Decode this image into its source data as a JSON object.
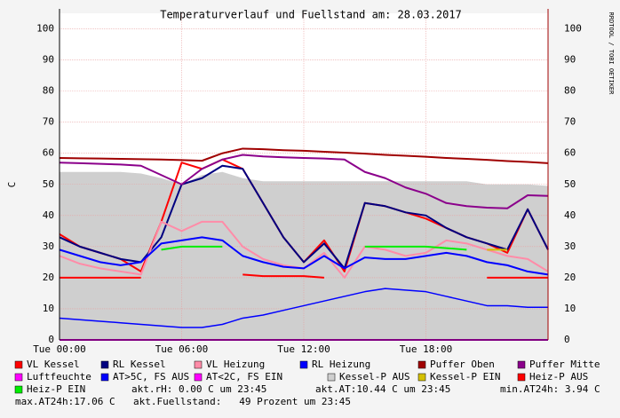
{
  "chart_data": {
    "type": "line",
    "title": "Temperaturverlauf und Fuellstand am: 28.03.2017",
    "y_label": "C",
    "watermark": "RRDTOOL / TOBI OETIKER",
    "x": [
      0,
      1,
      2,
      3,
      4,
      5,
      6,
      7,
      8,
      9,
      10,
      11,
      12,
      13,
      14,
      15,
      16,
      17,
      18,
      19,
      20,
      21,
      22,
      23,
      24
    ],
    "xlim": [
      0,
      24
    ],
    "xticks": [
      {
        "value": 0,
        "label": "Tue 00:00"
      },
      {
        "value": 6,
        "label": "Tue 06:00"
      },
      {
        "value": 12,
        "label": "Tue 12:00"
      },
      {
        "value": 18,
        "label": "Tue 18:00"
      }
    ],
    "ylim": [
      0,
      105
    ],
    "yticks": [
      0,
      10,
      20,
      30,
      40,
      50,
      60,
      70,
      80,
      90,
      100
    ],
    "grid": true,
    "series": [
      {
        "name": "Kessel-P AUS",
        "color": "#cfcfcf",
        "style": "area",
        "values": [
          54,
          54,
          54,
          54,
          53.5,
          52,
          50,
          53,
          54,
          52,
          51,
          51,
          51,
          51,
          51,
          51,
          51,
          51,
          51,
          51,
          51,
          50,
          50,
          50,
          49.5
        ]
      },
      {
        "name": "VL Kessel",
        "color": "#ff0000",
        "values": [
          34,
          30,
          28,
          26,
          22,
          38,
          57,
          55,
          58,
          55,
          44,
          33,
          25,
          32,
          22,
          44,
          43,
          41,
          39,
          36,
          33,
          31,
          28,
          42,
          29
        ]
      },
      {
        "name": "RL Kessel",
        "color": "#000080",
        "values": [
          33,
          30,
          28,
          26,
          25,
          33,
          50,
          52,
          56,
          55,
          44,
          33,
          25,
          31,
          23,
          44,
          43,
          41,
          40,
          36,
          33,
          31,
          29,
          42,
          29
        ]
      },
      {
        "name": "VL Heizung",
        "color": "#ff8ca8",
        "values": [
          27,
          24.5,
          23,
          22,
          21,
          38,
          35,
          38,
          38,
          30,
          26,
          24,
          23,
          28,
          20,
          30,
          29,
          27,
          28,
          32,
          31,
          29,
          27,
          26,
          22
        ]
      },
      {
        "name": "RL Heizung",
        "color": "#0000ff",
        "values": [
          29,
          27,
          25,
          24,
          25,
          31,
          32,
          33,
          32,
          27,
          25,
          23.5,
          23,
          27,
          23,
          26.5,
          26,
          26,
          27,
          28,
          27,
          25,
          24,
          22,
          21
        ]
      },
      {
        "name": "Puffer Oben",
        "color": "#a00000",
        "values": [
          58.5,
          58.4,
          58.3,
          58.2,
          58.1,
          58,
          57.8,
          57.6,
          60,
          61.5,
          61.3,
          61,
          60.8,
          60.5,
          60.2,
          59.9,
          59.5,
          59.2,
          58.9,
          58.5,
          58.2,
          57.9,
          57.5,
          57.2,
          56.8
        ]
      },
      {
        "name": "Puffer Mitte",
        "color": "#8b008b",
        "values": [
          57,
          56.8,
          56.6,
          56.4,
          56,
          53,
          50,
          55,
          58,
          59.5,
          59,
          58.7,
          58.5,
          58.3,
          58,
          54,
          52,
          49,
          47,
          44,
          43,
          42.5,
          42.3,
          46.5,
          46.3
        ]
      },
      {
        "name": "Luftfeuchte",
        "color": "#ff00ff",
        "values": [
          0,
          0,
          0,
          0,
          0,
          0,
          0,
          0,
          0,
          0,
          0,
          0,
          0,
          0,
          0,
          0,
          0,
          0,
          0,
          0,
          0,
          0,
          0,
          0,
          0
        ]
      },
      {
        "name": "AT>5C, FS AUS",
        "color": "#0000ff",
        "thin": true,
        "values": [
          7,
          6.5,
          6,
          5.5,
          5,
          4.5,
          4,
          4,
          5,
          7,
          8,
          9.5,
          11,
          12.5,
          14,
          15.5,
          16.5,
          16,
          15.5,
          14,
          12.5,
          11,
          11,
          10.5,
          10.5
        ]
      },
      {
        "name": "AT<2C, FS EIN",
        "color": "#ff00ff",
        "values": [
          null,
          null,
          null,
          null,
          null,
          null,
          null,
          null,
          null,
          null,
          null,
          null,
          null,
          null,
          null,
          null,
          null,
          null,
          null,
          null,
          null,
          null,
          null,
          null,
          null
        ]
      },
      {
        "name": "Kessel-P EIN",
        "color": "#d4c000",
        "values": [
          null,
          null,
          null,
          null,
          null,
          null,
          null,
          null,
          null,
          null,
          null,
          null,
          null,
          null,
          null,
          null,
          null,
          null,
          null,
          null,
          null,
          29,
          29,
          null,
          null
        ]
      },
      {
        "name": "Heiz-P AUS",
        "color": "#ff0000",
        "values": [
          20,
          20,
          20,
          20,
          20,
          null,
          null,
          null,
          null,
          21,
          20.5,
          20.5,
          20.5,
          20,
          null,
          null,
          null,
          null,
          null,
          null,
          null,
          20,
          20,
          20,
          20
        ]
      },
      {
        "name": "Heiz-P EIN",
        "color": "#00ee00",
        "values": [
          null,
          null,
          null,
          null,
          null,
          29,
          30,
          30,
          30,
          null,
          null,
          null,
          null,
          null,
          null,
          30,
          30,
          30,
          30,
          29.5,
          29,
          null,
          null,
          null,
          null
        ]
      }
    ],
    "annotations": [
      "akt.rH: 0.00 C um 23:45",
      "akt.AT:10.44 C um 23:45",
      "min.AT24h: 3.94 C",
      "max.AT24h:17.06 C",
      "akt.Fuellstand:   49 Prozent um 23:45"
    ]
  }
}
